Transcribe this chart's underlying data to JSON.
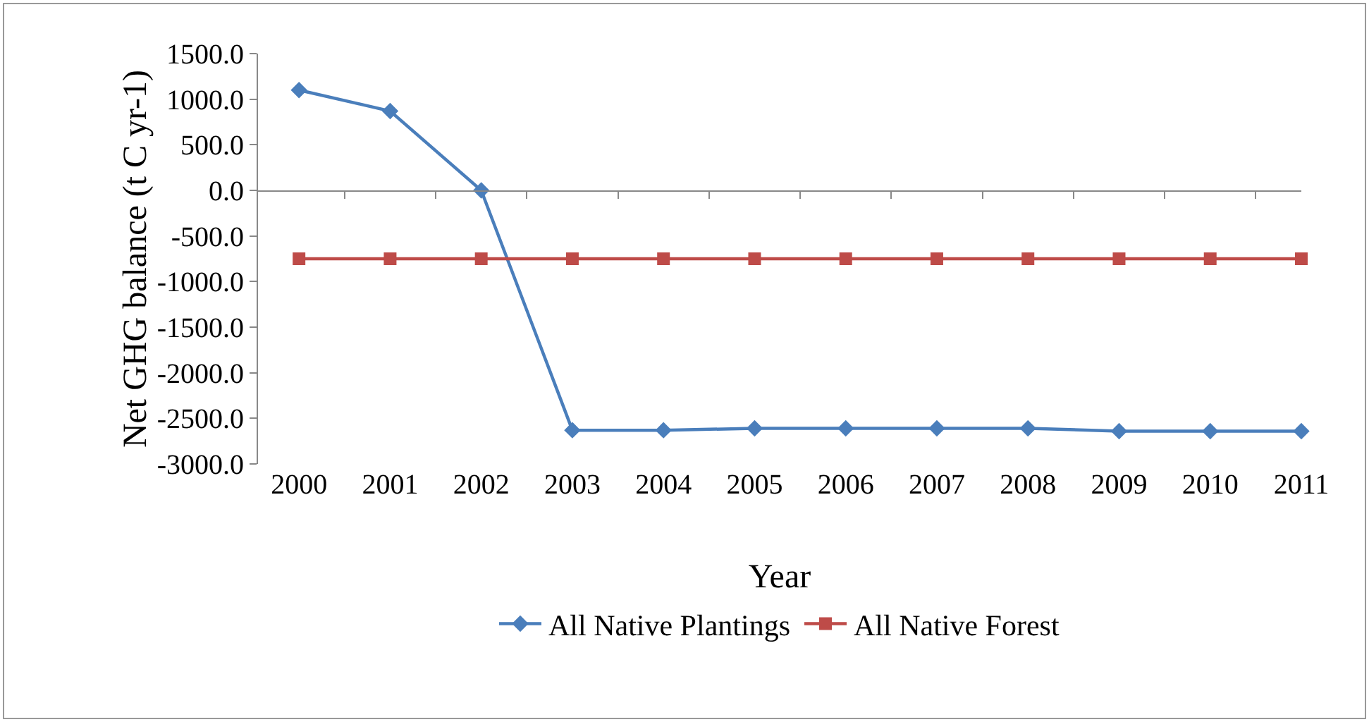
{
  "chart_data": {
    "type": "line",
    "xlabel": "Year",
    "ylabel": "Net GHG balance (t C yr-1)",
    "categories": [
      "2000",
      "2001",
      "2002",
      "2003",
      "2004",
      "2005",
      "2006",
      "2007",
      "2008",
      "2009",
      "2010",
      "2011"
    ],
    "series": [
      {
        "name": "All Native Plantings",
        "color": "#4a7ebb",
        "marker": "diamond",
        "values": [
          1100,
          870,
          0,
          -2630,
          -2630,
          -2610,
          -2610,
          -2610,
          -2610,
          -2640,
          -2640,
          -2640
        ]
      },
      {
        "name": "All Native Forest",
        "color": "#be4b48",
        "marker": "square",
        "values": [
          -750,
          -750,
          -750,
          -750,
          -750,
          -750,
          -750,
          -750,
          -750,
          -750,
          -750,
          -750
        ]
      }
    ],
    "ylim": [
      -3000,
      1500
    ],
    "yticks": [
      {
        "value": -3000,
        "label": "-3000.0"
      },
      {
        "value": -2500,
        "label": "-2500.0"
      },
      {
        "value": -2000,
        "label": "-2000.0"
      },
      {
        "value": -1500,
        "label": "-1500.0"
      },
      {
        "value": -1000,
        "label": "-1000.0"
      },
      {
        "value": -500,
        "label": "-500.0"
      },
      {
        "value": 0,
        "label": "0.0"
      },
      {
        "value": 500,
        "label": "500.0"
      },
      {
        "value": 1000,
        "label": "1000.0"
      },
      {
        "value": 1500,
        "label": "1500.0"
      }
    ],
    "ref_lines": [
      {
        "axis": "y",
        "value": 0,
        "color": "#888888"
      }
    ],
    "grid": false,
    "legend": "bottom",
    "line_style": "solid"
  }
}
